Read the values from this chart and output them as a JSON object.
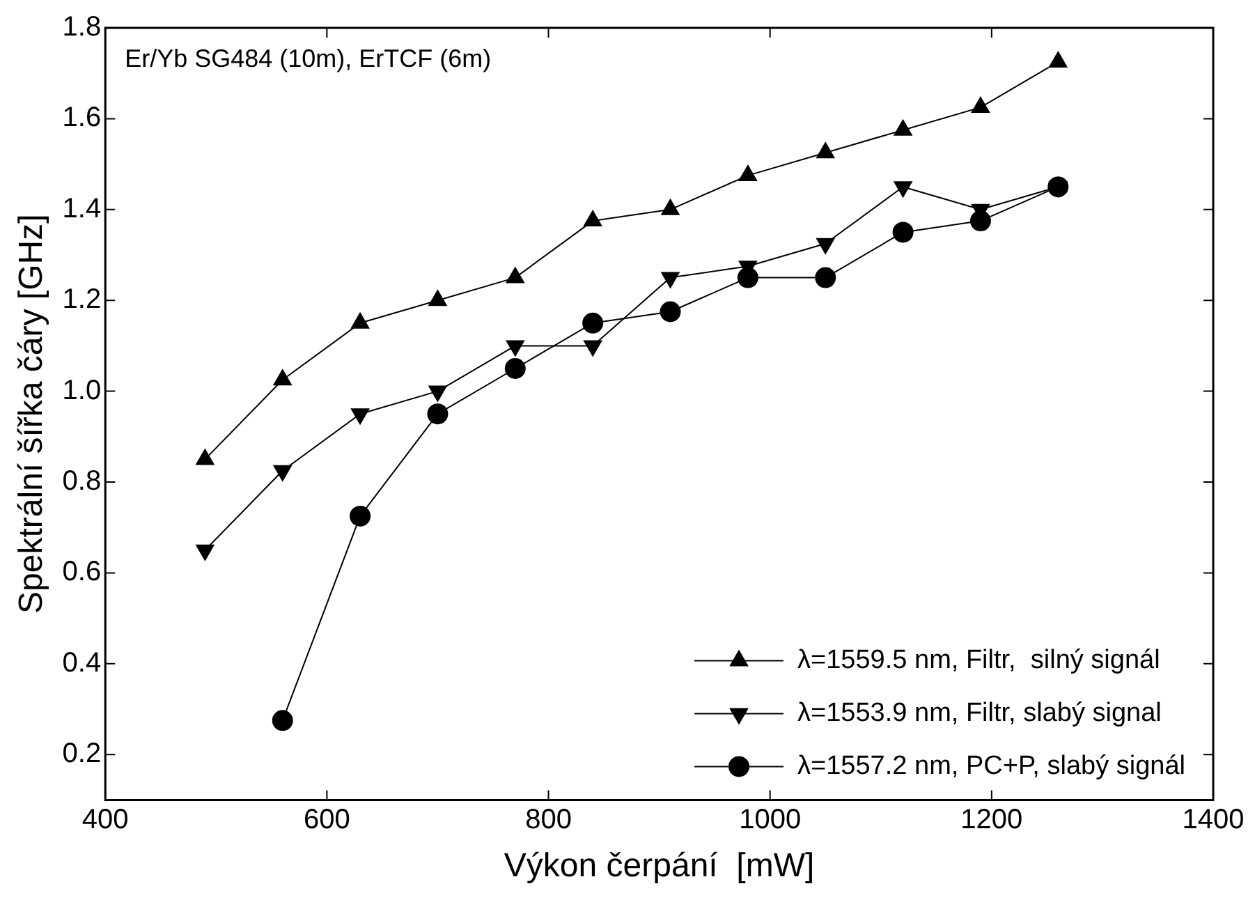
{
  "chart_data": {
    "type": "line",
    "xlabel": "Výkon čerpání  [mW]",
    "ylabel": "Spektrální šířka čáry [GHz]",
    "annotations": [
      "Er/Yb SG484 (10m), ErTCF (6m)"
    ],
    "x": [
      490,
      560,
      630,
      700,
      770,
      840,
      910,
      980,
      1050,
      1120,
      1190,
      1260
    ],
    "series": [
      {
        "name": "λ=1559.5 nm, Filtr,  silný signál",
        "color": "#000000",
        "marker": "triangle",
        "values": [
          0.85,
          1.025,
          1.15,
          1.2,
          1.25,
          1.375,
          1.4,
          1.475,
          1.525,
          1.575,
          1.625,
          1.725
        ]
      },
      {
        "name": "λ=1553.9 nm, Filtr, slabý signal",
        "color": "#000000",
        "marker": "triangle-down",
        "values": [
          0.65,
          0.825,
          0.95,
          1.0,
          1.1,
          1.1,
          1.25,
          1.275,
          1.325,
          1.45,
          1.4,
          1.45
        ]
      },
      {
        "name": "λ=1557.2 nm, PC+P, slabý signál",
        "color": "#000000",
        "marker": "circle",
        "values": [
          null,
          0.275,
          0.725,
          0.95,
          1.05,
          1.15,
          1.175,
          1.25,
          1.25,
          1.35,
          1.375,
          1.45
        ]
      }
    ],
    "xlim": [
      400,
      1400
    ],
    "xticks": [
      400,
      600,
      800,
      1000,
      1200,
      1400
    ],
    "ylim": [
      0.1,
      1.8
    ],
    "yticks": [
      0.2,
      0.4,
      0.6,
      0.8,
      {
        "value": 1,
        "label": "1.0"
      },
      1.2,
      1.4,
      1.6,
      1.8
    ],
    "legend": "bottom right",
    "grid": false,
    "line_style": "solid"
  }
}
